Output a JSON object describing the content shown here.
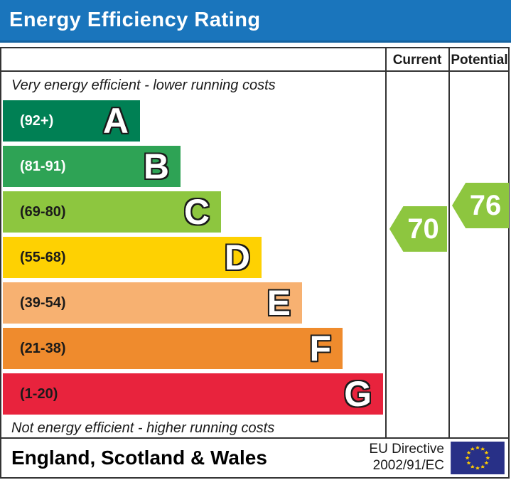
{
  "title": "Energy Efficiency Rating",
  "header": {
    "current": "Current",
    "potential": "Potential"
  },
  "captions": {
    "top": "Very energy efficient - lower running costs",
    "bottom": "Not energy efficient - higher running costs"
  },
  "chart_data": {
    "type": "bar",
    "subtype": "epc-energy-efficiency-rating",
    "bands": [
      {
        "letter": "A",
        "range_label": "(92+)",
        "min": 92,
        "max": 100,
        "color": "#008054",
        "label_color": "#ffffff"
      },
      {
        "letter": "B",
        "range_label": "(81-91)",
        "min": 81,
        "max": 91,
        "color": "#2ea355",
        "label_color": "#ffffff"
      },
      {
        "letter": "C",
        "range_label": "(69-80)",
        "min": 69,
        "max": 80,
        "color": "#8dc63f",
        "label_color": "#1a1a1a"
      },
      {
        "letter": "D",
        "range_label": "(55-68)",
        "min": 55,
        "max": 68,
        "color": "#fed102",
        "label_color": "#1a1a1a"
      },
      {
        "letter": "E",
        "range_label": "(39-54)",
        "min": 39,
        "max": 54,
        "color": "#f7b171",
        "label_color": "#1a1a1a"
      },
      {
        "letter": "F",
        "range_label": "(21-38)",
        "min": 21,
        "max": 38,
        "color": "#ef8b2d",
        "label_color": "#1a1a1a"
      },
      {
        "letter": "G",
        "range_label": "(1-20)",
        "min": 1,
        "max": 20,
        "color": "#e8233d",
        "label_color": "#1a1a1a"
      }
    ],
    "current": {
      "value": 70,
      "band": "C",
      "arrow_color": "#8dc63f"
    },
    "potential": {
      "value": 76,
      "band": "C",
      "arrow_color": "#8dc63f"
    }
  },
  "footer": {
    "region": "England, Scotland & Wales",
    "directive": [
      "EU Directive",
      "2002/91/EC"
    ],
    "flag_icon": "eu-flag"
  },
  "colors": {
    "title_bg": "#1a75bc",
    "border": "#333333",
    "eu_flag_blue": "#283087",
    "eu_star_gold": "#ffcc00"
  }
}
